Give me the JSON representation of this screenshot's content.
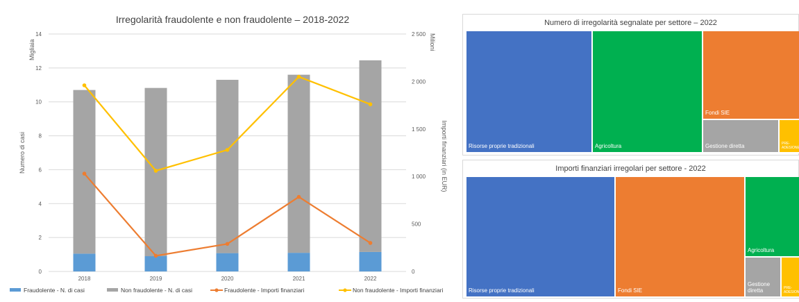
{
  "chart_data": [
    {
      "type": "bar+line",
      "title": "Irregolarità fraudolente e non fraudolente – 2018-2022",
      "categories": [
        "2018",
        "2019",
        "2020",
        "2021",
        "2022"
      ],
      "y_left": {
        "label": "Numero di casi",
        "unit": "Migliaia",
        "ylim": [
          0,
          14
        ],
        "ticks": [
          "0",
          "2",
          "4",
          "6",
          "8",
          "10",
          "12",
          "14"
        ]
      },
      "y_right": {
        "label": "Importi finanziari (in EUR)",
        "unit": "Milioni",
        "ylim": [
          0,
          2500
        ],
        "ticks": [
          "0",
          "500",
          "1 000",
          "1 500",
          "2 000",
          "2 500"
        ]
      },
      "series": [
        {
          "name": "Fraudolente - N. di casi",
          "kind": "bar-stacked",
          "axis": "left",
          "color": "#5b9bd5",
          "values": [
            1.05,
            0.9,
            1.08,
            1.1,
            1.15
          ]
        },
        {
          "name": "Non fraudolente - N. di casi",
          "kind": "bar-stacked",
          "axis": "left",
          "color": "#a5a5a5",
          "values": [
            9.65,
            9.92,
            10.22,
            10.5,
            11.3
          ]
        },
        {
          "name": "Fraudolente - Importi finanziari",
          "kind": "line",
          "axis": "right",
          "color": "#ed7d31",
          "values": [
            1030,
            165,
            290,
            785,
            300
          ]
        },
        {
          "name": "Non fraudolente - Importi finanziari",
          "kind": "line",
          "axis": "right",
          "color": "#ffc000",
          "values": [
            1960,
            1060,
            1280,
            2050,
            1760
          ]
        }
      ],
      "grid": true,
      "legend": "bottom"
    },
    {
      "type": "treemap",
      "title": "Numero di irregolarità segnalate per settore – 2022",
      "items": [
        {
          "label": "Risorse proprie tradizionali",
          "color": "#4472c4",
          "value": 2520
        },
        {
          "label": "Agricoltura",
          "color": "#00b050",
          "value": 2210
        },
        {
          "label": "Fondi SIE",
          "color": "#ed7d31",
          "value": 1880
        },
        {
          "label": "Gestione diretta",
          "color": "#a5a5a5",
          "value": 490
        },
        {
          "label": "PRE-ADESIONE",
          "color": "#ffc000",
          "value": 160
        }
      ]
    },
    {
      "type": "treemap",
      "title": "Importi finanziari irregolari per settore - 2022",
      "items": [
        {
          "label": "Risorse proprie tradizionali",
          "color": "#4472c4",
          "value": 2950
        },
        {
          "label": "Fondi SIE",
          "color": "#ed7d31",
          "value": 2550
        },
        {
          "label": "Agricoltura",
          "color": "#00b050",
          "value": 500
        },
        {
          "label": "Gestione diretta",
          "color": "#a5a5a5",
          "value": 150
        },
        {
          "label": "PRE-ADESIONE",
          "color": "#ffc000",
          "value": 120
        }
      ]
    }
  ]
}
